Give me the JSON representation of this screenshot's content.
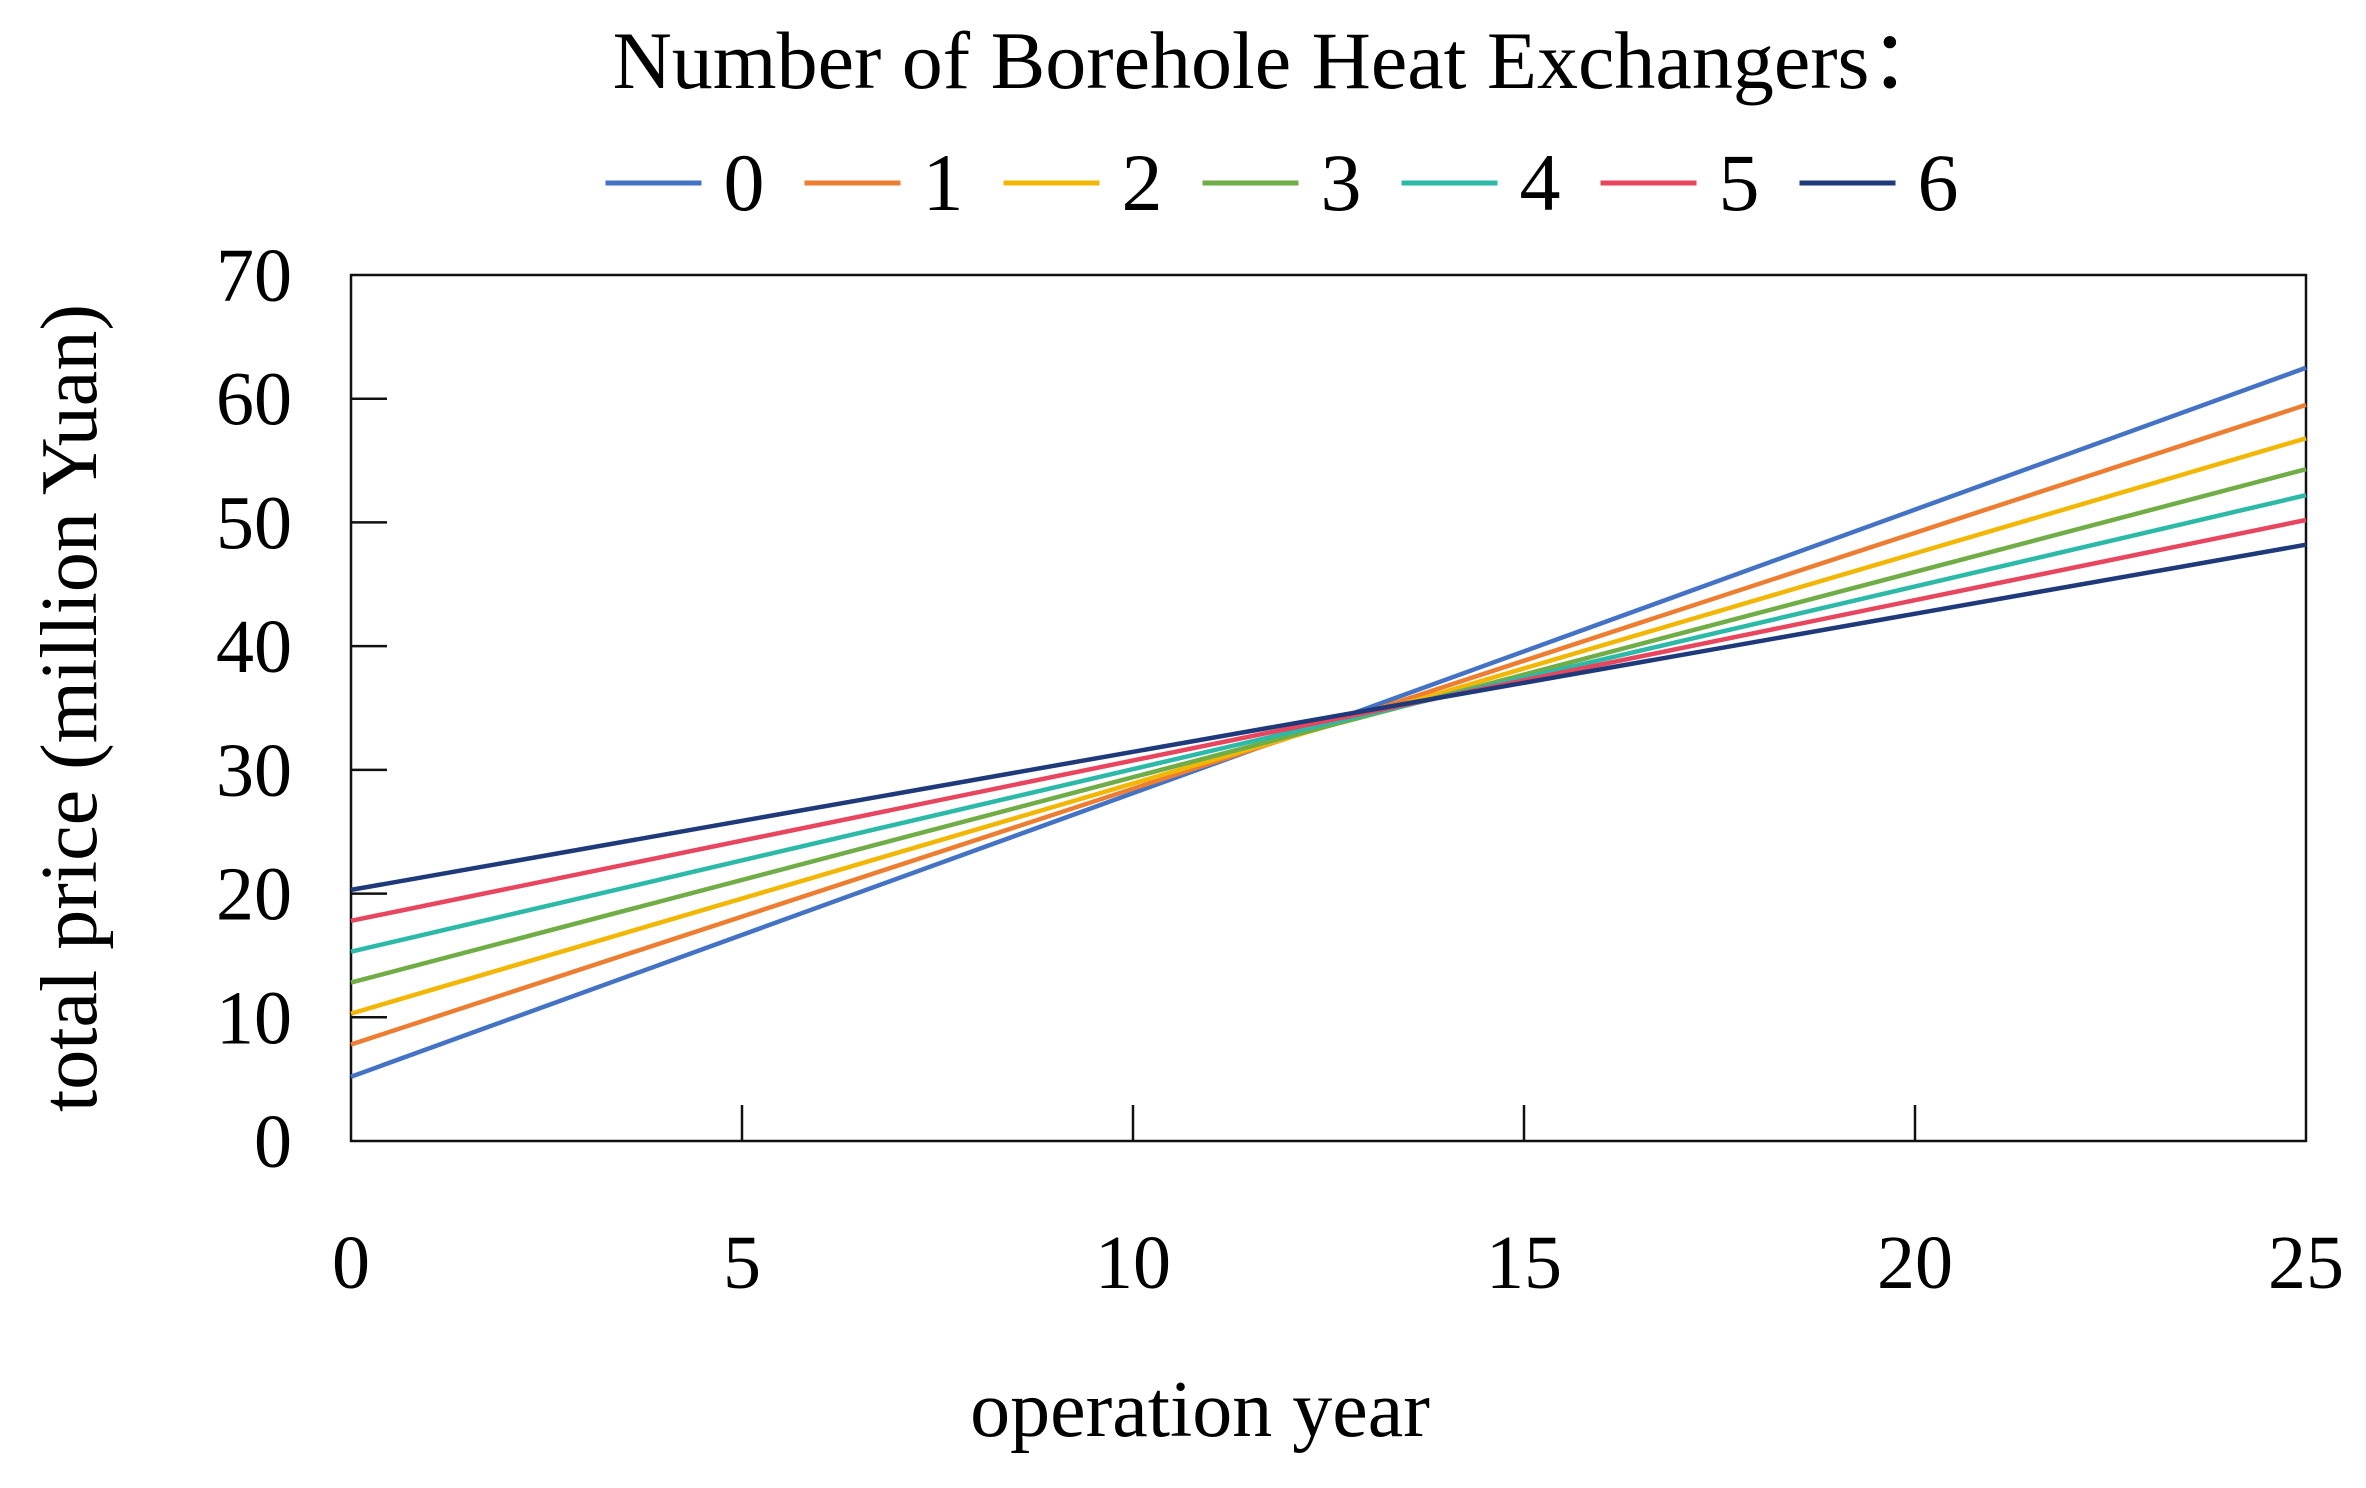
{
  "chart_data": {
    "type": "line",
    "legend_title": "Number of Borehole Heat Exchangers：",
    "legend_placement": "top-center",
    "xlabel": "operation year",
    "ylabel": "total price (million Yuan)",
    "xlim": [
      0,
      25
    ],
    "ylim": [
      0,
      70
    ],
    "xticks": [
      "0",
      "5",
      "10",
      "15",
      "20",
      "25"
    ],
    "yticks": [
      "0",
      "10",
      "20",
      "30",
      "40",
      "50",
      "60",
      "70"
    ],
    "grid": false,
    "x": [
      0,
      25
    ],
    "series": [
      {
        "name": "0",
        "color": "#4472C4",
        "values": [
          5.2,
          62.5
        ]
      },
      {
        "name": "1",
        "color": "#ED7D31",
        "values": [
          7.8,
          59.5
        ]
      },
      {
        "name": "2",
        "color": "#F2B705",
        "values": [
          10.3,
          56.8
        ]
      },
      {
        "name": "3",
        "color": "#70AD47",
        "values": [
          12.8,
          54.3
        ]
      },
      {
        "name": "4",
        "color": "#2CB9A8",
        "values": [
          15.3,
          52.2
        ]
      },
      {
        "name": "5",
        "color": "#E8455E",
        "values": [
          17.8,
          50.2
        ]
      },
      {
        "name": "6",
        "color": "#1F3A7A",
        "values": [
          20.3,
          48.2
        ]
      }
    ]
  }
}
